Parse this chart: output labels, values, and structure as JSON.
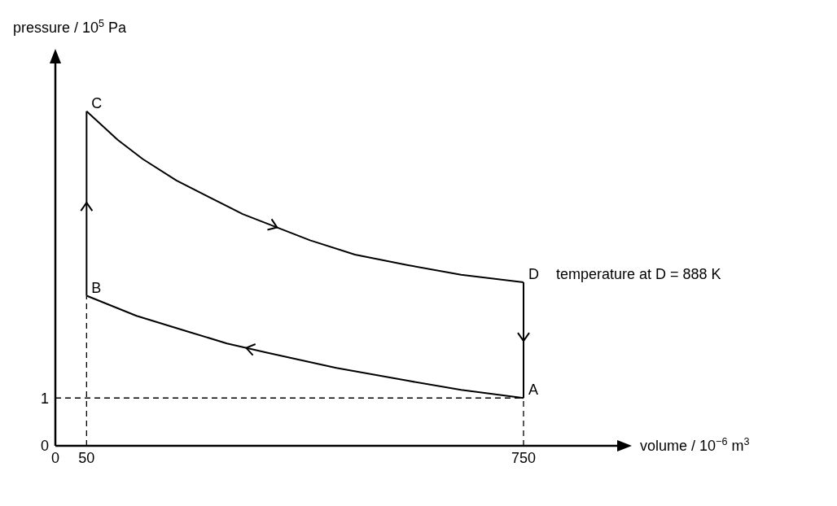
{
  "chart_data": {
    "type": "line",
    "xlabel": "volume / 10$^{−6}$ m$^{3}$",
    "ylabel": "pressure / 10$^{5}$ Pa",
    "xlim": [
      0,
      900
    ],
    "xticks": [
      0,
      50,
      750
    ],
    "ylim": [
      0,
      8
    ],
    "yticks": [
      0,
      1
    ],
    "grid": false,
    "marker": "none",
    "series": [
      {
        "color": "#000000",
        "line_style": "solid",
        "x": [
          750,
          650,
          565,
          450,
          339,
          275,
          215,
          130,
          50
        ],
        "values": [
          1,
          1.17,
          1.36,
          1.63,
          1.95,
          2.14,
          2.38,
          2.72,
          3.14
        ]
      },
      {
        "color": "#000000",
        "line_style": "solid",
        "x": [
          50,
          50
        ],
        "values": [
          3.14,
          7.0
        ]
      },
      {
        "color": "#000000",
        "line_style": "solid",
        "x": [
          50,
          100,
          140,
          194,
          300,
          408,
          480,
          565,
          650,
          750
        ],
        "values": [
          7.0,
          6.4,
          6.0,
          5.55,
          4.85,
          4.3,
          4.0,
          3.78,
          3.58,
          3.42
        ]
      },
      {
        "color": "#000000",
        "line_style": "solid",
        "x": [
          750,
          750
        ],
        "values": [
          3.42,
          1
        ]
      },
      {
        "color": "#000000",
        "line_style": "dashed",
        "x": [
          0,
          750
        ],
        "values": [
          1,
          1
        ]
      },
      {
        "color": "#000000",
        "line_style": "dashed",
        "x": [
          50,
          50
        ],
        "values": [
          0,
          3.14
        ]
      },
      {
        "color": "#000000",
        "line_style": "dashed",
        "x": [
          750,
          750
        ],
        "values": [
          0,
          1
        ]
      }
    ],
    "annotations": [
      "A",
      "B",
      "C",
      "D",
      "temperature at D = 888 K"
    ]
  }
}
